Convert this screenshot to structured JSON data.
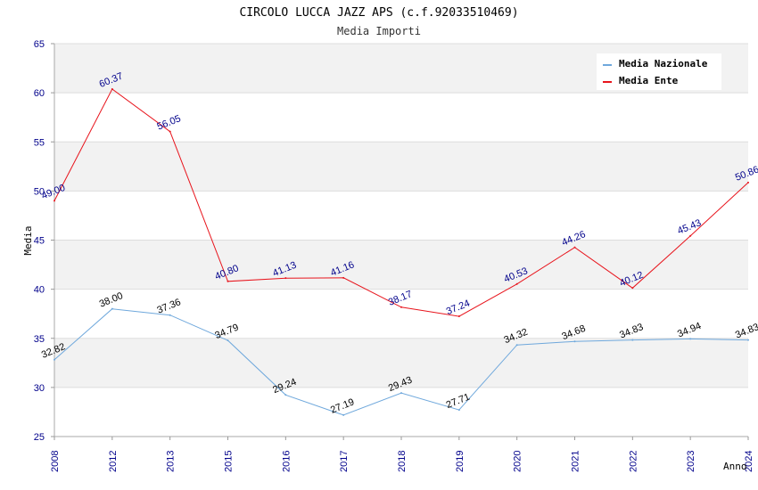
{
  "chart_data": {
    "type": "line",
    "title": "CIRCOLO LUCCA JAZZ APS (c.f.92033510469)",
    "subtitle": "Media Importi",
    "xlabel": "Anno",
    "ylabel": "Media",
    "ylim": [
      25,
      65
    ],
    "yticks": [
      25,
      30,
      35,
      40,
      45,
      50,
      55,
      60,
      65
    ],
    "grid": true,
    "legend_position": "top-right",
    "categories": [
      "2008",
      "2012",
      "2013",
      "2015",
      "2016",
      "2017",
      "2018",
      "2019",
      "2020",
      "2021",
      "2022",
      "2023",
      "2024"
    ],
    "series": [
      {
        "name": "Media Nazionale",
        "color": "#6fa8dc",
        "values": [
          32.82,
          38.0,
          37.36,
          34.79,
          29.24,
          27.19,
          29.43,
          27.71,
          34.32,
          34.68,
          34.83,
          34.94,
          34.83
        ],
        "labels": [
          "32.82",
          "38.00",
          "37.36",
          "34.79",
          "29.24",
          "27.19",
          "29.43",
          "27.71",
          "34.32",
          "34.68",
          "34.83",
          "34.94",
          "34.83"
        ]
      },
      {
        "name": "Media Ente",
        "color": "#e8141c",
        "values": [
          49.0,
          60.37,
          56.05,
          40.8,
          41.13,
          41.16,
          38.17,
          37.24,
          40.53,
          44.26,
          40.12,
          45.43,
          50.86
        ],
        "labels": [
          "49.00",
          "60.37",
          "56.05",
          "40.80",
          "41.13",
          "41.16",
          "38.17",
          "37.24",
          "40.53",
          "44.26",
          "40.12",
          "45.43",
          "50.86"
        ]
      }
    ]
  }
}
